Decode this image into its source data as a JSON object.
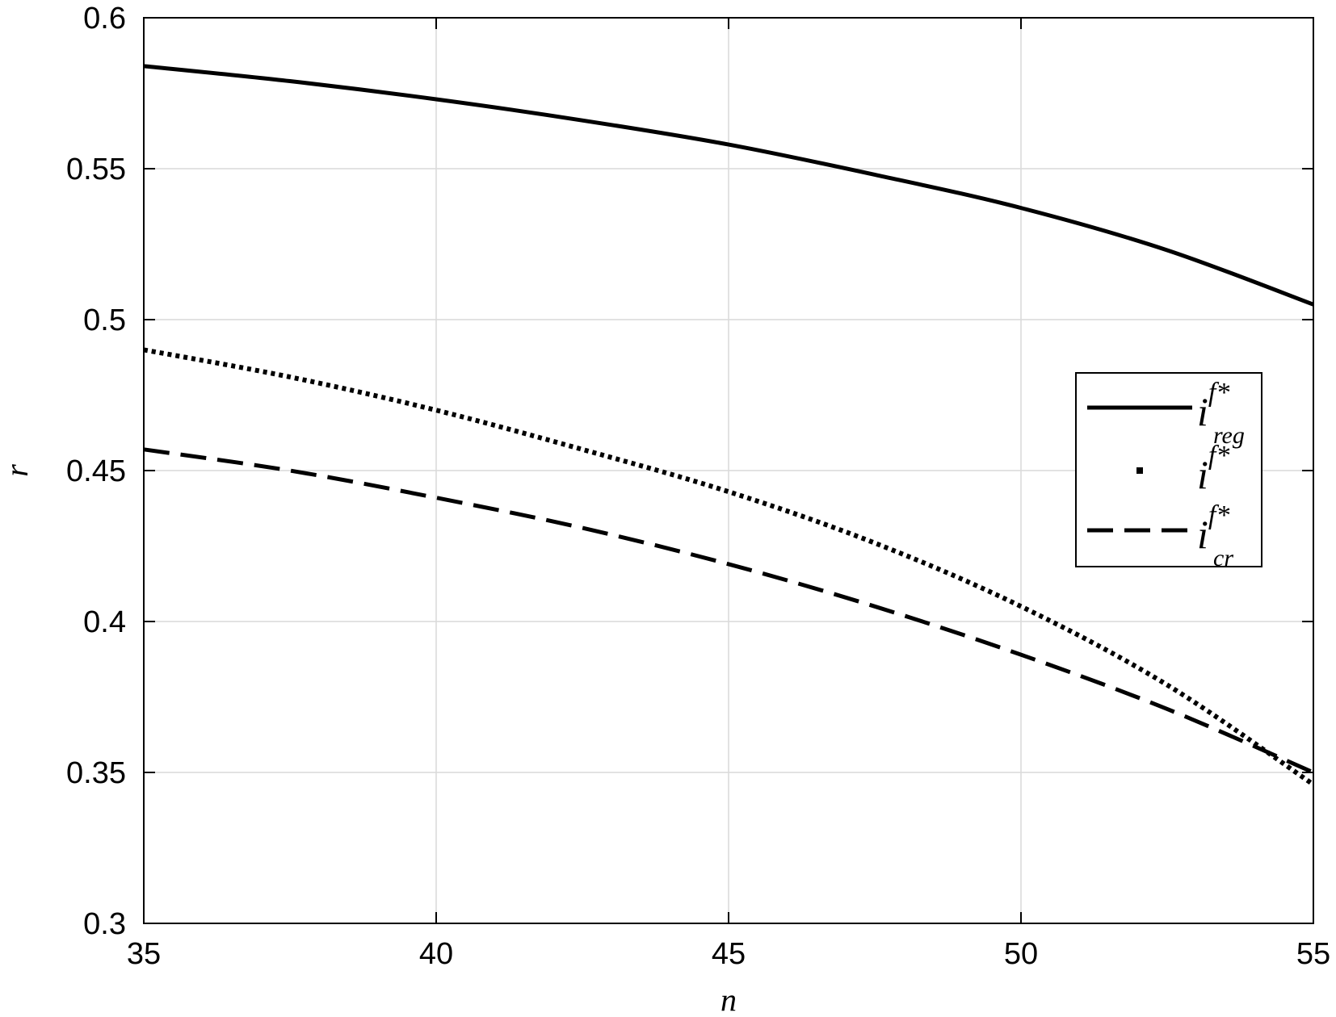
{
  "chart_data": {
    "type": "line",
    "xlabel": "n",
    "ylabel": "r",
    "xlim": [
      35,
      55
    ],
    "ylim": [
      0.3,
      0.6
    ],
    "xticks": [
      35,
      40,
      45,
      50,
      55
    ],
    "yticks": [
      0.3,
      0.35,
      0.4,
      0.45,
      0.5,
      0.55,
      0.6
    ],
    "xtick_labels": [
      "35",
      "40",
      "45",
      "50",
      "55"
    ],
    "ytick_labels": [
      "0.3",
      "0.35",
      "0.4",
      "0.45",
      "0.5",
      "0.55",
      "0.6"
    ],
    "grid": true,
    "legend_position": "right",
    "x": [
      35,
      37.5,
      40,
      42.5,
      45,
      47.5,
      50,
      52.5,
      55
    ],
    "series": [
      {
        "name_base": "i",
        "name_sup": "f*",
        "name_sub": "reg",
        "style": "solid",
        "values": [
          0.584,
          0.579,
          0.573,
          0.566,
          0.558,
          0.548,
          0.537,
          0.523,
          0.505
        ]
      },
      {
        "name_base": "i",
        "name_sup": "f*",
        "name_sub": "",
        "style": "dotted",
        "values": [
          0.49,
          0.481,
          0.47,
          0.457,
          0.443,
          0.426,
          0.405,
          0.379,
          0.346
        ]
      },
      {
        "name_base": "i",
        "name_sup": "f*",
        "name_sub": "cr",
        "style": "dashed",
        "values": [
          0.457,
          0.45,
          0.441,
          0.431,
          0.419,
          0.405,
          0.389,
          0.371,
          0.35
        ]
      }
    ]
  }
}
